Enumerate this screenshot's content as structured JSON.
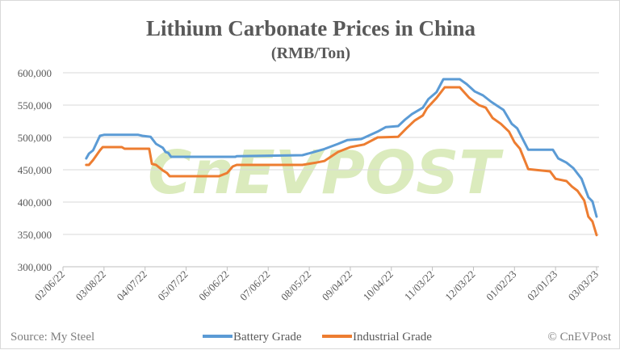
{
  "chart_data": {
    "type": "line",
    "title": "Lithium Carbonate Prices in China",
    "subtitle": "(RMB/Ton)",
    "xlabel": "",
    "ylabel": "",
    "x_unit": "days since 02/06/22",
    "x_ticks": [
      "02/06/22",
      "03/08/22",
      "04/07/22",
      "05/07/22",
      "06/06/22",
      "07/06/22",
      "08/05/22",
      "09/04/22",
      "10/04/22",
      "11/03/22",
      "12/03/22",
      "01/02/23",
      "02/01/23",
      "03/03/23"
    ],
    "x_tick_days": [
      0,
      30,
      60,
      90,
      120,
      150,
      180,
      210,
      240,
      270,
      300,
      330,
      360,
      390
    ],
    "xlim": [
      0,
      390
    ],
    "y_ticks": [
      "300,000",
      "350,000",
      "400,000",
      "450,000",
      "500,000",
      "550,000",
      "600,000"
    ],
    "y_tick_values": [
      300000,
      350000,
      400000,
      450000,
      500000,
      550000,
      600000
    ],
    "ylim": [
      300000,
      600000
    ],
    "grid": true,
    "legend_position": "bottom",
    "series": [
      {
        "name": "Battery Grade",
        "color": "#5B9BD5",
        "points": [
          [
            17,
            467500
          ],
          [
            19,
            475000
          ],
          [
            22,
            480000
          ],
          [
            27,
            502500
          ],
          [
            30,
            504000
          ],
          [
            55,
            504000
          ],
          [
            58,
            502500
          ],
          [
            64,
            501000
          ],
          [
            68,
            490000
          ],
          [
            73,
            484000
          ],
          [
            75,
            477500
          ],
          [
            77,
            476000
          ],
          [
            79,
            470000
          ],
          [
            126,
            470000
          ],
          [
            127,
            471000
          ],
          [
            175,
            472500
          ],
          [
            181,
            476000
          ],
          [
            186,
            479000
          ],
          [
            191,
            482000
          ],
          [
            201,
            490000
          ],
          [
            208,
            496000
          ],
          [
            218,
            497500
          ],
          [
            230,
            509000
          ],
          [
            236,
            516000
          ],
          [
            245,
            517500
          ],
          [
            250,
            527500
          ],
          [
            255,
            536000
          ],
          [
            263,
            546000
          ],
          [
            267,
            559000
          ],
          [
            273,
            570000
          ],
          [
            278,
            590000
          ],
          [
            290,
            590000
          ],
          [
            295,
            582500
          ],
          [
            301,
            571000
          ],
          [
            307,
            565000
          ],
          [
            313,
            555000
          ],
          [
            322,
            542500
          ],
          [
            328,
            521000
          ],
          [
            332,
            514000
          ],
          [
            340,
            481000
          ],
          [
            358,
            481000
          ],
          [
            362,
            467500
          ],
          [
            368,
            461000
          ],
          [
            373,
            452500
          ],
          [
            379,
            436000
          ],
          [
            384,
            407500
          ],
          [
            387,
            401000
          ],
          [
            390,
            377500
          ]
        ]
      },
      {
        "name": "Industrial Grade",
        "color": "#ED7D31",
        "points": [
          [
            17,
            457500
          ],
          [
            19,
            457500
          ],
          [
            22,
            465000
          ],
          [
            27,
            480000
          ],
          [
            29,
            485000
          ],
          [
            43,
            485000
          ],
          [
            45,
            482500
          ],
          [
            63,
            482500
          ],
          [
            65,
            459000
          ],
          [
            68,
            457500
          ],
          [
            73,
            449000
          ],
          [
            76,
            445000
          ],
          [
            78,
            440000
          ],
          [
            114,
            440000
          ],
          [
            120,
            445000
          ],
          [
            124,
            455000
          ],
          [
            127,
            457500
          ],
          [
            175,
            457500
          ],
          [
            185,
            461000
          ],
          [
            191,
            463500
          ],
          [
            201,
            477500
          ],
          [
            210,
            485000
          ],
          [
            220,
            489000
          ],
          [
            230,
            500000
          ],
          [
            245,
            501000
          ],
          [
            251,
            514000
          ],
          [
            257,
            526000
          ],
          [
            263,
            534000
          ],
          [
            266,
            545000
          ],
          [
            273,
            561000
          ],
          [
            279,
            577500
          ],
          [
            290,
            577500
          ],
          [
            297,
            561000
          ],
          [
            304,
            550000
          ],
          [
            309,
            546000
          ],
          [
            314,
            530000
          ],
          [
            320,
            521000
          ],
          [
            326,
            509000
          ],
          [
            330,
            492500
          ],
          [
            334,
            482500
          ],
          [
            340,
            451000
          ],
          [
            356,
            447500
          ],
          [
            360,
            436000
          ],
          [
            368,
            432500
          ],
          [
            372,
            424000
          ],
          [
            376,
            417500
          ],
          [
            381,
            402500
          ],
          [
            384,
            377500
          ],
          [
            387,
            370000
          ],
          [
            390,
            349000
          ]
        ]
      }
    ]
  },
  "footer": {
    "source": "Source: My Steel",
    "copyright": "© CnEVPost"
  },
  "watermark": "CnEVPOST"
}
